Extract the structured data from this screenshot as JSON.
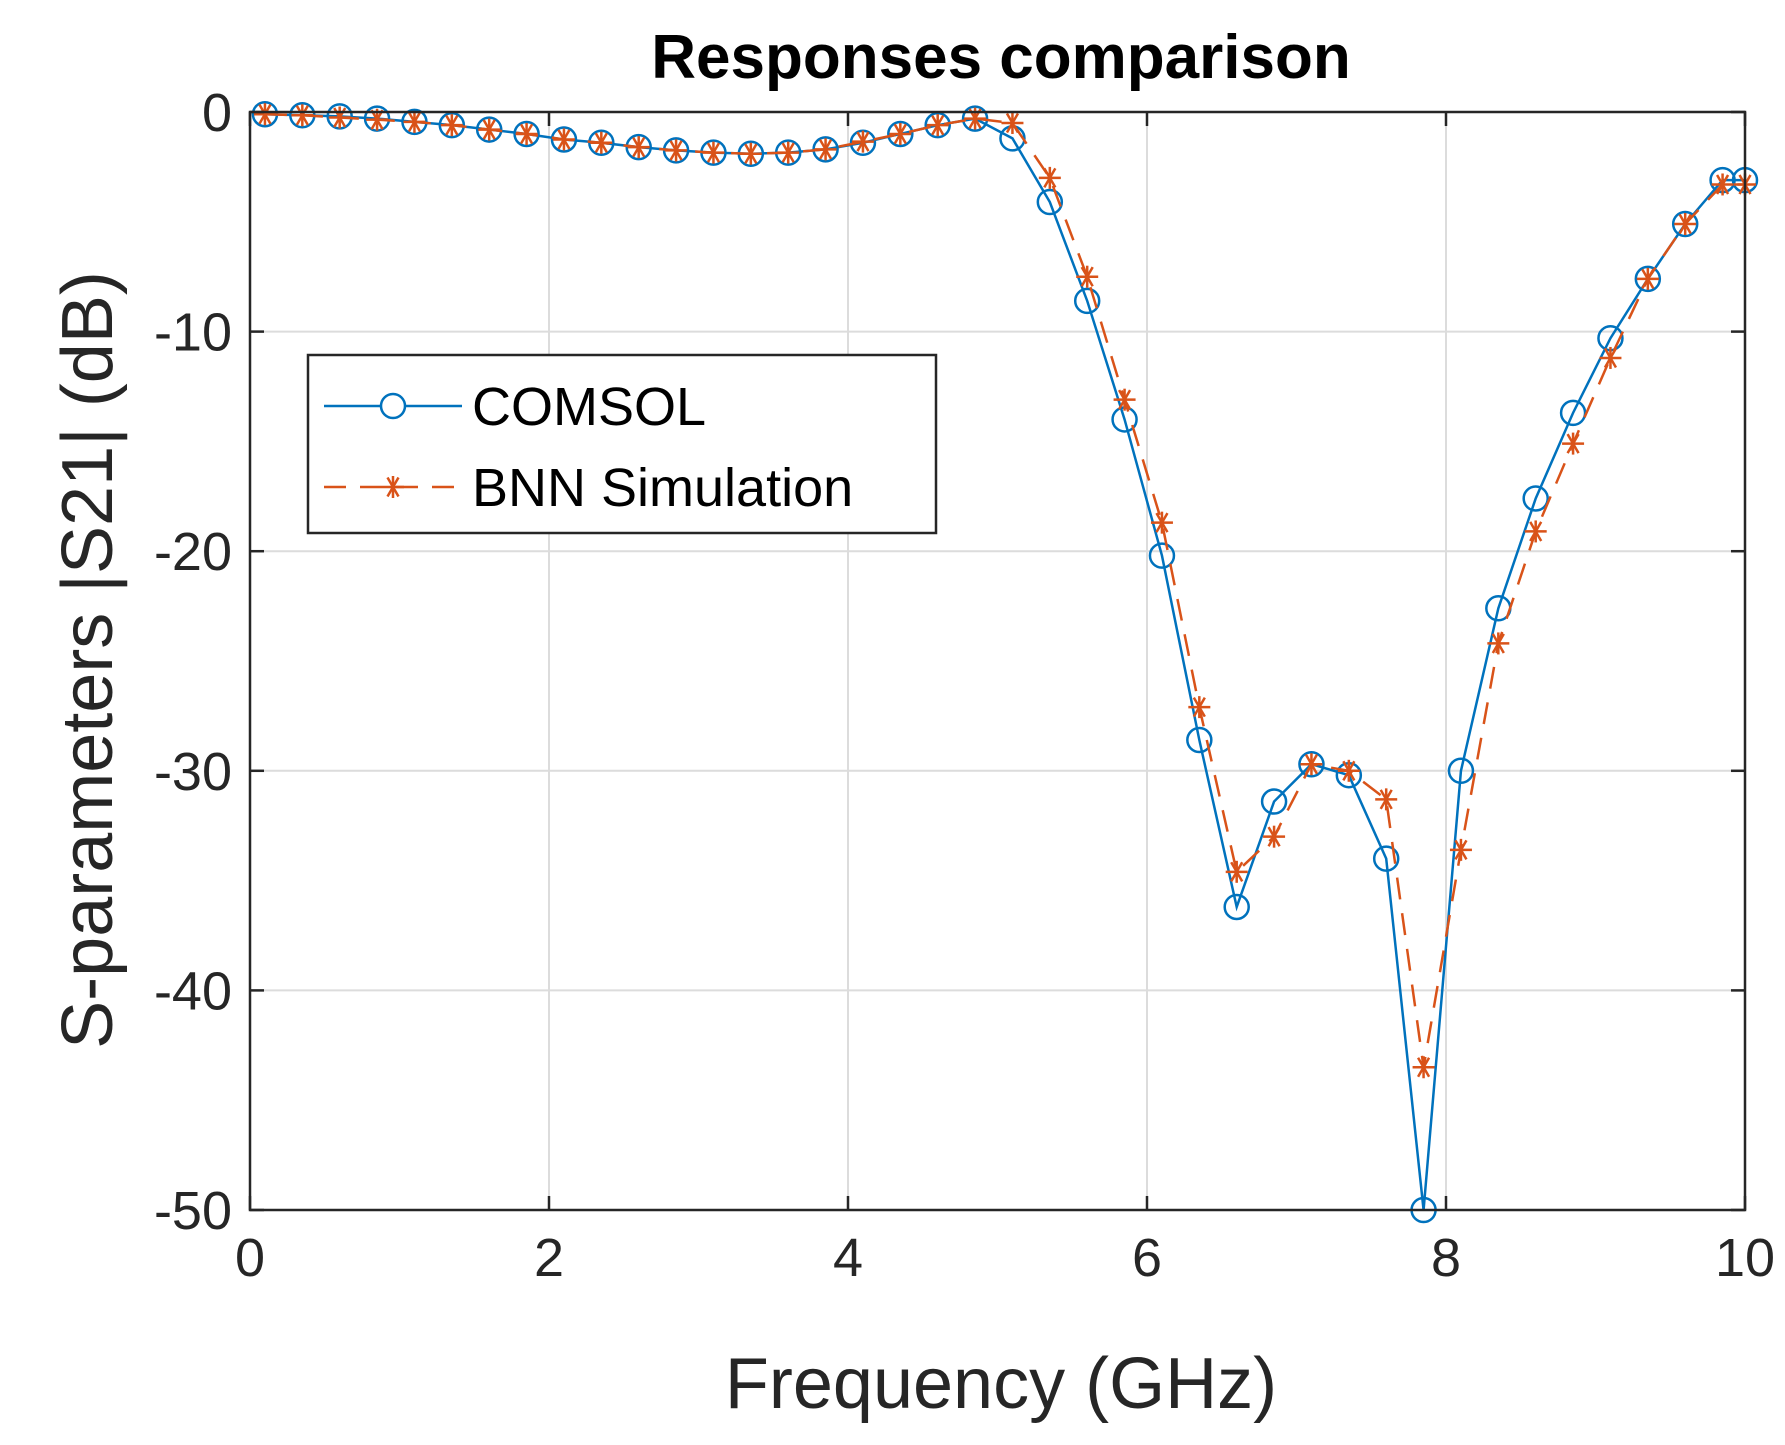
{
  "colors": {
    "comsol": "#0072BD",
    "bnn": "#D95319",
    "axis": "#262626",
    "grid": "#dcdcdc"
  },
  "chart_data": {
    "type": "line",
    "title": "Responses comparison",
    "xlabel": "Frequency (GHz)",
    "ylabel": "S-parameters |S21| (dB)",
    "xlim": [
      0,
      10
    ],
    "ylim": [
      -50,
      0
    ],
    "xticks": [
      0,
      2,
      4,
      6,
      8,
      10
    ],
    "yticks": [
      0,
      -10,
      -20,
      -30,
      -40,
      -50
    ],
    "xtick_labels": [
      "0",
      "2",
      "4",
      "6",
      "8",
      "10"
    ],
    "ytick_labels": [
      "0",
      "-10",
      "-20",
      "-30",
      "-40",
      "-50"
    ],
    "grid": true,
    "legend_position": "upper-left",
    "x": [
      0.1,
      0.35,
      0.6,
      0.85,
      1.1,
      1.35,
      1.6,
      1.85,
      2.1,
      2.35,
      2.6,
      2.85,
      3.1,
      3.35,
      3.6,
      3.85,
      4.1,
      4.35,
      4.6,
      4.85,
      5.1,
      5.35,
      5.6,
      5.85,
      6.1,
      6.35,
      6.6,
      6.85,
      7.1,
      7.35,
      7.6,
      7.85,
      8.1,
      8.35,
      8.6,
      8.85,
      9.1,
      9.35,
      9.6,
      9.85,
      10.0
    ],
    "series": [
      {
        "name": "COMSOL",
        "marker": "circle",
        "line": "solid",
        "values": [
          -0.1,
          -0.15,
          -0.2,
          -0.3,
          -0.45,
          -0.6,
          -0.8,
          -1.0,
          -1.25,
          -1.4,
          -1.6,
          -1.75,
          -1.85,
          -1.9,
          -1.85,
          -1.7,
          -1.4,
          -1.0,
          -0.6,
          -0.3,
          -1.2,
          -4.1,
          -8.6,
          -14.0,
          -20.2,
          -28.6,
          -36.2,
          -31.4,
          -29.7,
          -30.2,
          -34.0,
          -50.0,
          -30.0,
          -22.6,
          -17.6,
          -13.7,
          -10.3,
          -7.6,
          -5.1,
          -3.1,
          -3.1
        ]
      },
      {
        "name": "BNN Simulation",
        "marker": "asterisk",
        "line": "dashed",
        "values": [
          -0.1,
          -0.15,
          -0.25,
          -0.35,
          -0.45,
          -0.6,
          -0.8,
          -1.0,
          -1.25,
          -1.4,
          -1.6,
          -1.75,
          -1.85,
          -1.9,
          -1.85,
          -1.7,
          -1.35,
          -1.0,
          -0.6,
          -0.3,
          -0.5,
          -3.0,
          -7.5,
          -13.1,
          -18.7,
          -27.1,
          -34.6,
          -33.0,
          -29.7,
          -30.0,
          -31.3,
          -43.5,
          -33.6,
          -24.2,
          -19.1,
          -15.1,
          -11.2,
          -7.6,
          -5.1,
          -3.3,
          -3.3
        ]
      }
    ]
  }
}
